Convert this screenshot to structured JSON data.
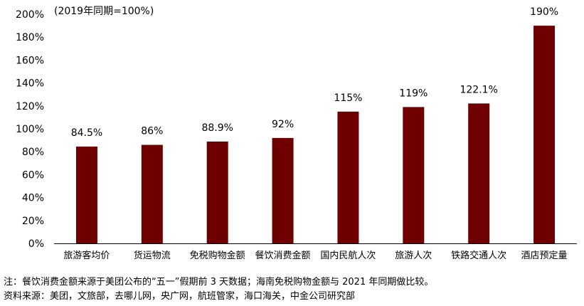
{
  "chart_data": {
    "type": "bar",
    "unit_note": "(2019年同期=100%)",
    "categories": [
      "旅游客均价",
      "货运物流",
      "免税购物金额",
      "餐饮消费金额",
      "国内民航人次",
      "旅游人次",
      "铁路交通人次",
      "酒店预定量"
    ],
    "values": [
      84.5,
      86,
      88.9,
      92,
      115,
      119,
      122.1,
      190
    ],
    "data_labels": [
      "84.5%",
      "86%",
      "88.9%",
      "92%",
      "115%",
      "119%",
      "122.1%",
      "190%"
    ],
    "ylim": [
      0,
      200
    ],
    "yticks": [
      0,
      20,
      40,
      60,
      80,
      100,
      120,
      140,
      160,
      180,
      200
    ],
    "ytick_labels": [
      "0%",
      "20%",
      "40%",
      "60%",
      "80%",
      "100%",
      "120%",
      "140%",
      "160%",
      "180%",
      "200%"
    ],
    "grid": false,
    "legend": "none",
    "bar_color": "#6e0000"
  },
  "notes": {
    "note": "注：餐饮消费金额来源于美团公布的“五一”假期前 3 天数据；海南免税购物金额与 2021 年同期做比较。",
    "source": "资料来源：美团，文旅部，去哪儿网，央广网，航班管家，海口海关，中金公司研究部"
  }
}
